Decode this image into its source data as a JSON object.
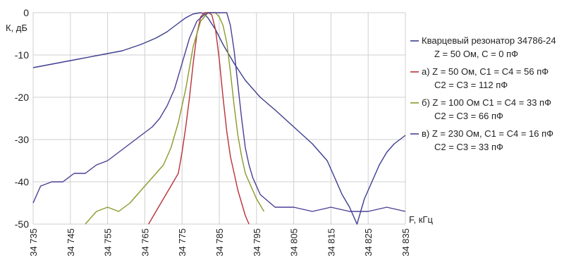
{
  "chart_data": {
    "type": "line",
    "title": "",
    "ylabel": "К, дБ",
    "xlabel": "F, кГц",
    "xlim": [
      34735,
      34835
    ],
    "ylim": [
      -50,
      0
    ],
    "xticks": [
      34735,
      34745,
      34755,
      34765,
      34775,
      34785,
      34795,
      34805,
      34815,
      34825,
      34835
    ],
    "xtick_labels": [
      "34 735",
      "34 745",
      "34 755",
      "34 765",
      "34 775",
      "34 785",
      "34 795",
      "34 805",
      "34 815",
      "34 825",
      "34 835"
    ],
    "yticks": [
      0,
      -10,
      -20,
      -30,
      -40,
      -50
    ],
    "ytick_labels": [
      "0",
      "-10",
      "-20",
      "-30",
      "-40",
      "-50"
    ],
    "grid": true,
    "legend_position": "right",
    "series": [
      {
        "name": "Кварцевый резонатор 34786-24",
        "name_line2": "Z = 50 Ом, С = 0 пФ",
        "color": "#3d3d8f",
        "x": [
          34735,
          34741,
          34747,
          34753,
          34759,
          34764,
          34768,
          34771,
          34774,
          34776,
          34778,
          34780,
          34781,
          34782,
          34784,
          34786,
          34789,
          34792,
          34796,
          34800,
          34805,
          34810,
          34814,
          34816,
          34818,
          34820,
          34821,
          34822,
          34823,
          34824,
          34826,
          34828,
          34830,
          34832,
          34835
        ],
        "y": [
          -13,
          -12,
          -11,
          -10,
          -9,
          -7.5,
          -6,
          -4.5,
          -2.5,
          -1.2,
          -0.3,
          0,
          -0.3,
          -1.3,
          -4,
          -7.5,
          -12,
          -16,
          -20,
          -23,
          -27,
          -31,
          -35,
          -39,
          -43,
          -46,
          -48,
          -50,
          -47,
          -44,
          -40,
          -36,
          -33,
          -31,
          -29
        ]
      },
      {
        "name": "а) Z = 50 Ом, С1 = С4 = 56 пФ",
        "name_line2": "С2 = С3 = 112 пФ",
        "color": "#b8323a",
        "x": [
          34766,
          34768,
          34770,
          34772,
          34774,
          34775,
          34776,
          34777,
          34778,
          34779,
          34780,
          34781,
          34782,
          34783,
          34784,
          34785,
          34786,
          34787,
          34788,
          34789,
          34790,
          34791,
          34792,
          34793
        ],
        "y": [
          -50,
          -47,
          -44,
          -41,
          -38,
          -33,
          -27,
          -20,
          -12,
          -5,
          -1,
          0,
          0,
          -0.5,
          -4,
          -11,
          -20,
          -28,
          -34,
          -38,
          -42,
          -45,
          -48,
          -50
        ]
      },
      {
        "name": "б) Z = 100 Ом С1 = С4 = 33 пФ",
        "name_line2": "С2 = С3 = 66 пФ",
        "color": "#8a9a2a",
        "x": [
          34749,
          34752,
          34755,
          34758,
          34761,
          34764,
          34767,
          34770,
          34772,
          34774,
          34776,
          34778,
          34780,
          34782,
          34784,
          34785,
          34786,
          34787,
          34788,
          34789,
          34790,
          34791,
          34792,
          34793,
          34794,
          34795,
          34797
        ],
        "y": [
          -50,
          -47,
          -46,
          -47,
          -45,
          -42,
          -39,
          -36,
          -32,
          -26,
          -18,
          -8,
          -2,
          0,
          0,
          -1,
          -3,
          -7,
          -14,
          -22,
          -29,
          -34,
          -38,
          -40,
          -42,
          -44,
          -47
        ]
      },
      {
        "name": "в) Z = 230 Ом, С1 = С4 = 16 пФ",
        "name_line2": "С2 = С3 = 33 пФ",
        "color": "#4b3f95",
        "x": [
          34735,
          34737,
          34740,
          34743,
          34746,
          34749,
          34752,
          34755,
          34758,
          34761,
          34764,
          34767,
          34769,
          34771,
          34773,
          34775,
          34777,
          34779,
          34781,
          34782,
          34783,
          34785,
          34787,
          34788,
          34789,
          34790,
          34791,
          34792,
          34793,
          34794,
          34796,
          34800,
          34805,
          34810,
          34815,
          34820,
          34825,
          34830,
          34835
        ],
        "y": [
          -45,
          -41,
          -40,
          -40,
          -38,
          -38,
          -36,
          -35,
          -33,
          -31,
          -29,
          -27,
          -25,
          -22,
          -18,
          -12,
          -6,
          -2,
          -0.5,
          0,
          0,
          0,
          0,
          -3,
          -9,
          -17,
          -25,
          -32,
          -36,
          -39,
          -43,
          -46,
          -46,
          -47,
          -46,
          -47,
          -47,
          -46,
          -47
        ]
      }
    ]
  }
}
